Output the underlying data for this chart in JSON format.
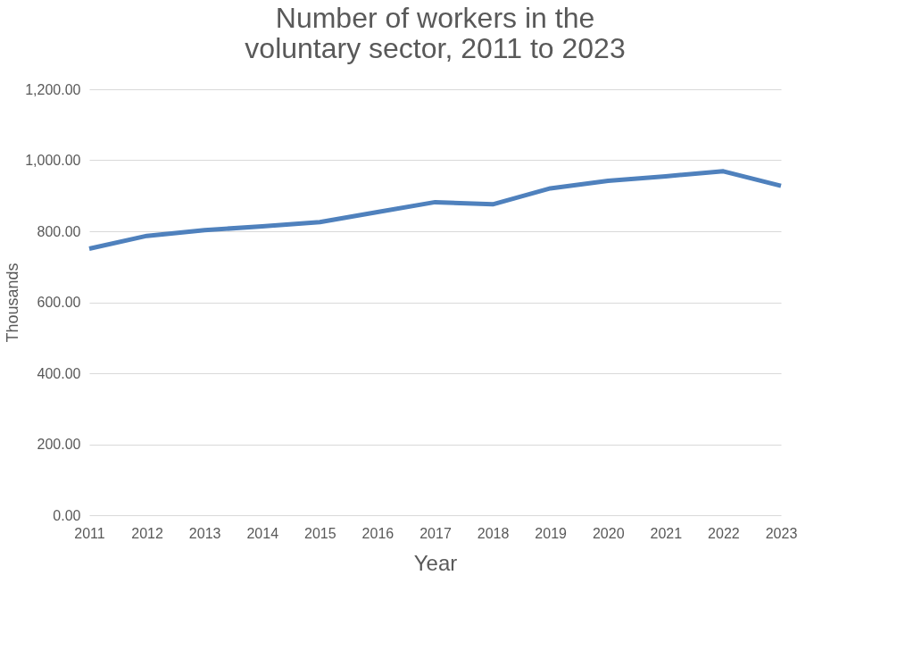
{
  "chart_data": {
    "type": "line",
    "title": "Number of workers in the voluntary sector, 2011 to 2023",
    "xlabel": "Year",
    "ylabel": "Thousands",
    "categories": [
      "2011",
      "2012",
      "2013",
      "2014",
      "2015",
      "2016",
      "2017",
      "2018",
      "2019",
      "2020",
      "2021",
      "2022",
      "2023"
    ],
    "series": [
      {
        "color": "#4f81bd",
        "values": [
          751,
          787,
          803,
          814,
          826,
          854,
          882,
          876,
          921,
          942,
          955,
          969,
          928
        ]
      }
    ],
    "ylim": [
      0,
      1200
    ],
    "yticks": [
      {
        "value": 0,
        "label": "0.00"
      },
      {
        "value": 200,
        "label": "200.00"
      },
      {
        "value": 400,
        "label": "400.00"
      },
      {
        "value": 600,
        "label": "600.00"
      },
      {
        "value": 800,
        "label": "800.00"
      },
      {
        "value": 1000,
        "label": "1,000.00"
      },
      {
        "value": 1200,
        "label": "1,200.00"
      }
    ],
    "grid": "y",
    "legend": false,
    "marker": "none",
    "line_style": "solid"
  }
}
